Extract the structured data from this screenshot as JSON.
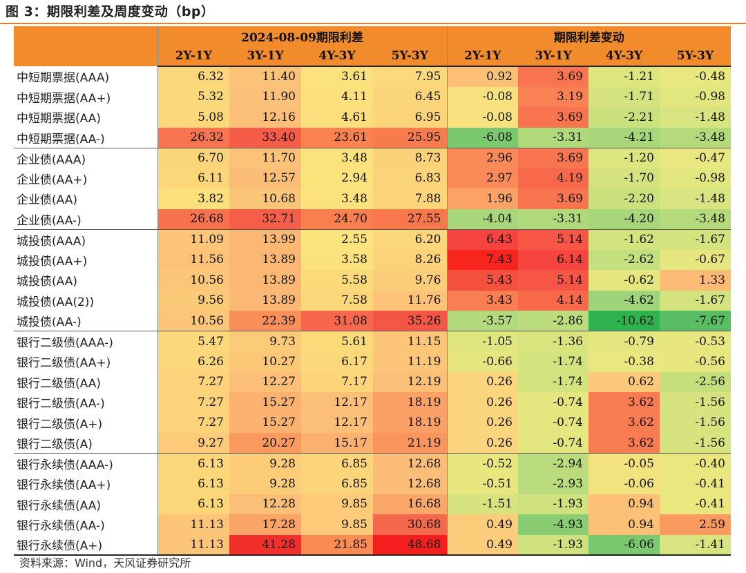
{
  "title": "图 3：期限利差及周度变动（bp）",
  "header": {
    "corner": "",
    "group_left": "2024-08-09期限利差",
    "group_right": "期限利差变动",
    "columns": [
      "2Y-1Y",
      "3Y-1Y",
      "4Y-3Y",
      "5Y-3Y",
      "2Y-1Y",
      "3Y-1Y",
      "4Y-3Y",
      "5Y-3Y"
    ]
  },
  "rows": [
    {
      "label": "中短期票据(AAA)",
      "values": [
        "6.32",
        "11.40",
        "3.61",
        "7.95",
        "0.92",
        "3.69",
        "-1.21",
        "-0.48"
      ],
      "colors": [
        "#fbd67a",
        "#fcc378",
        "#fbe27c",
        "#fcd97a",
        "#fcc077",
        "#f9754f",
        "#dde57f",
        "#e9e77f"
      ]
    },
    {
      "label": "中短期票据(AA+)",
      "values": [
        "5.32",
        "11.90",
        "4.11",
        "6.45",
        "-0.08",
        "3.19",
        "-1.71",
        "-0.98"
      ],
      "colors": [
        "#fbd97a",
        "#fcc178",
        "#fbe07c",
        "#fbd57a",
        "#f8e27f",
        "#fa8153",
        "#d4e37e",
        "#e1e67f"
      ]
    },
    {
      "label": "中短期票据(AA)",
      "values": [
        "5.08",
        "12.16",
        "4.61",
        "6.95",
        "-0.08",
        "3.69",
        "-2.21",
        "-1.48"
      ],
      "colors": [
        "#fbd97a",
        "#fbbf77",
        "#fbdf7c",
        "#fcd47a",
        "#f8e27f",
        "#f9754f",
        "#cbe17e",
        "#d8e47f"
      ]
    },
    {
      "label": "中短期票据(AA-)",
      "values": [
        "26.32",
        "33.40",
        "23.61",
        "25.95",
        "-6.08",
        "-3.31",
        "-4.21",
        "-3.48"
      ],
      "colors": [
        "#f8734f",
        "#f55d49",
        "#f9824f",
        "#f87b4e",
        "#7bc96f",
        "#b0d97c",
        "#a8d77b",
        "#b4da7c"
      ]
    },
    {
      "label": "企业债(AAA)",
      "values": [
        "6.70",
        "11.70",
        "3.48",
        "8.73",
        "2.96",
        "3.69",
        "-1.20",
        "-0.47"
      ],
      "colors": [
        "#fbd57a",
        "#fcc277",
        "#fbe27c",
        "#fcd279",
        "#fa8a58",
        "#f9754f",
        "#dde57f",
        "#e9e77f"
      ]
    },
    {
      "label": "企业债(AA+)",
      "values": [
        "6.11",
        "12.57",
        "2.94",
        "6.83",
        "2.97",
        "4.19",
        "-1.70",
        "-0.98"
      ],
      "colors": [
        "#fbd77a",
        "#fbbe77",
        "#fbe37c",
        "#fbd47a",
        "#fa8a58",
        "#f8684b",
        "#d4e37e",
        "#e1e67f"
      ]
    },
    {
      "label": "企业债(AA)",
      "values": [
        "3.82",
        "10.68",
        "3.48",
        "7.88",
        "1.96",
        "3.69",
        "-2.20",
        "-1.48"
      ],
      "colors": [
        "#fbe07c",
        "#fbc578",
        "#fbe27c",
        "#fcd579",
        "#fba366",
        "#f9754f",
        "#cbe17e",
        "#d8e47f"
      ]
    },
    {
      "label": "企业债(AA-)",
      "values": [
        "26.68",
        "32.71",
        "24.70",
        "27.55",
        "-4.04",
        "-3.31",
        "-4.20",
        "-3.48"
      ],
      "colors": [
        "#f8724e",
        "#f55f49",
        "#f97f4f",
        "#f8774d",
        "#a8d77b",
        "#b0d97c",
        "#a8d77b",
        "#b4da7c"
      ]
    },
    {
      "label": "城投债(AAA)",
      "values": [
        "11.09",
        "13.99",
        "2.55",
        "6.20",
        "6.43",
        "5.14",
        "-1.62",
        "-1.67"
      ],
      "colors": [
        "#fcc578",
        "#fbb874",
        "#fbe47c",
        "#fbd67a",
        "#f5433d",
        "#f75646",
        "#d5e37e",
        "#d4e37e"
      ]
    },
    {
      "label": "城投债(AA+)",
      "values": [
        "11.56",
        "13.89",
        "3.58",
        "8.26",
        "7.43",
        "6.14",
        "-2.62",
        "-0.67"
      ],
      "colors": [
        "#fcc378",
        "#fbb874",
        "#fbe17c",
        "#fcd379",
        "#f8251f",
        "#f5453e",
        "#c4df7d",
        "#e5e67f"
      ]
    },
    {
      "label": "城投债(AA)",
      "values": [
        "10.56",
        "13.89",
        "5.58",
        "9.76",
        "5.43",
        "5.14",
        "-0.62",
        "1.33"
      ],
      "colors": [
        "#fcc678",
        "#fbb874",
        "#fbda7a",
        "#fccd79",
        "#f6503f",
        "#f75646",
        "#e6e67f",
        "#fcbb74"
      ]
    },
    {
      "label": "城投债(AA(2))",
      "values": [
        "9.56",
        "13.89",
        "7.58",
        "11.76",
        "3.43",
        "4.14",
        "-4.62",
        "-1.67"
      ],
      "colors": [
        "#fbca79",
        "#fbb874",
        "#fcd77a",
        "#fcc278",
        "#f97f52",
        "#f8694b",
        "#a0d47a",
        "#d4e37e"
      ]
    },
    {
      "label": "城投债(AA-)",
      "values": [
        "10.56",
        "22.39",
        "31.08",
        "35.26",
        "-3.57",
        "-2.86",
        "-10.62",
        "-7.67"
      ],
      "colors": [
        "#fcc678",
        "#fa9059",
        "#f6674b",
        "#f55545",
        "#b2da7c",
        "#bbdc7d",
        "#2fb34f",
        "#59bd63"
      ]
    },
    {
      "label": "银行二级债(AAA-)",
      "values": [
        "5.47",
        "9.73",
        "5.61",
        "11.15",
        "-1.05",
        "-1.36",
        "-0.79",
        "-0.53"
      ],
      "colors": [
        "#fbd87a",
        "#fccb79",
        "#fbda7a",
        "#fcc578",
        "#e0e67f",
        "#dae47e",
        "#e4e67f",
        "#e8e77f"
      ]
    },
    {
      "label": "银行二级债(AA+)",
      "values": [
        "6.26",
        "10.27",
        "6.17",
        "11.19",
        "-0.66",
        "-1.74",
        "-0.38",
        "-0.56"
      ],
      "colors": [
        "#fbd67a",
        "#fcc878",
        "#fbd87a",
        "#fcc578",
        "#e6e67f",
        "#d3e37e",
        "#ebe77f",
        "#e8e77f"
      ]
    },
    {
      "label": "银行二级债(AA)",
      "values": [
        "7.27",
        "12.27",
        "7.17",
        "12.19",
        "0.26",
        "-1.74",
        "0.62",
        "-2.56"
      ],
      "colors": [
        "#fcd37a",
        "#fbbf77",
        "#fcd47a",
        "#fbbf77",
        "#fad57d",
        "#d3e37e",
        "#fcc97a",
        "#c5df7d"
      ]
    },
    {
      "label": "银行二级债(AA-)",
      "values": [
        "7.27",
        "15.27",
        "12.17",
        "18.19",
        "0.26",
        "-0.74",
        "3.62",
        "-1.56"
      ],
      "colors": [
        "#fcd37a",
        "#fbb271",
        "#fbbf77",
        "#fba066",
        "#fad57d",
        "#e4e67f",
        "#f97b51",
        "#d6e37e"
      ]
    },
    {
      "label": "银行二级债(A+)",
      "values": [
        "7.27",
        "15.27",
        "12.17",
        "18.19",
        "0.26",
        "-0.74",
        "3.62",
        "-1.56"
      ],
      "colors": [
        "#fcd37a",
        "#fbb271",
        "#fbbf77",
        "#fba066",
        "#fad57d",
        "#e4e67f",
        "#f97b51",
        "#d6e37e"
      ]
    },
    {
      "label": "银行二级债(A)",
      "values": [
        "9.27",
        "20.27",
        "15.17",
        "21.19",
        "0.26",
        "-0.74",
        "3.62",
        "-1.56"
      ],
      "colors": [
        "#fccb79",
        "#fa9a5f",
        "#fbb271",
        "#fa955d",
        "#fad57d",
        "#e4e67f",
        "#f97b51",
        "#d6e37e"
      ]
    },
    {
      "label": "银行永续债(AAA-)",
      "values": [
        "6.13",
        "9.28",
        "6.85",
        "12.68",
        "-0.52",
        "-2.94",
        "-0.05",
        "-0.40"
      ],
      "colors": [
        "#fbd77a",
        "#fccc79",
        "#fcd47a",
        "#fbbd77",
        "#e8e77f",
        "#bbdc7d",
        "#f3e37f",
        "#eae77f"
      ]
    },
    {
      "label": "银行永续债(AA+)",
      "values": [
        "6.13",
        "9.28",
        "6.85",
        "12.68",
        "-0.51",
        "-2.93",
        "-0.06",
        "-0.41"
      ],
      "colors": [
        "#fbd77a",
        "#fccc79",
        "#fcd47a",
        "#fbbd77",
        "#e8e77f",
        "#bbdc7d",
        "#f3e37f",
        "#eae77f"
      ]
    },
    {
      "label": "银行永续债(AA)",
      "values": [
        "6.13",
        "12.28",
        "9.85",
        "16.68",
        "-1.51",
        "-1.93",
        "0.94",
        "-0.41"
      ],
      "colors": [
        "#fbd77a",
        "#fbbf77",
        "#fcca79",
        "#fba769",
        "#d7e37e",
        "#cfe27e",
        "#fcc077",
        "#eae77f"
      ]
    },
    {
      "label": "银行永续债(AA-)",
      "values": [
        "11.13",
        "17.28",
        "9.85",
        "30.68",
        "0.49",
        "-4.93",
        "0.94",
        "2.59"
      ],
      "colors": [
        "#fcc578",
        "#fba468",
        "#fcca79",
        "#f6684b",
        "#fbcc7a",
        "#89cc72",
        "#fcc077",
        "#fa9a5f"
      ]
    },
    {
      "label": "银行永续债(A+)",
      "values": [
        "11.13",
        "41.28",
        "21.85",
        "48.68",
        "0.49",
        "-1.93",
        "-6.06",
        "-1.41"
      ],
      "colors": [
        "#fcc578",
        "#f32f2c",
        "#fa8b53",
        "#f41e1e",
        "#fbcc7a",
        "#cfe27e",
        "#7bc96f",
        "#d8e47f"
      ]
    }
  ],
  "source": "资料来源：Wind，天风证券研究所"
}
